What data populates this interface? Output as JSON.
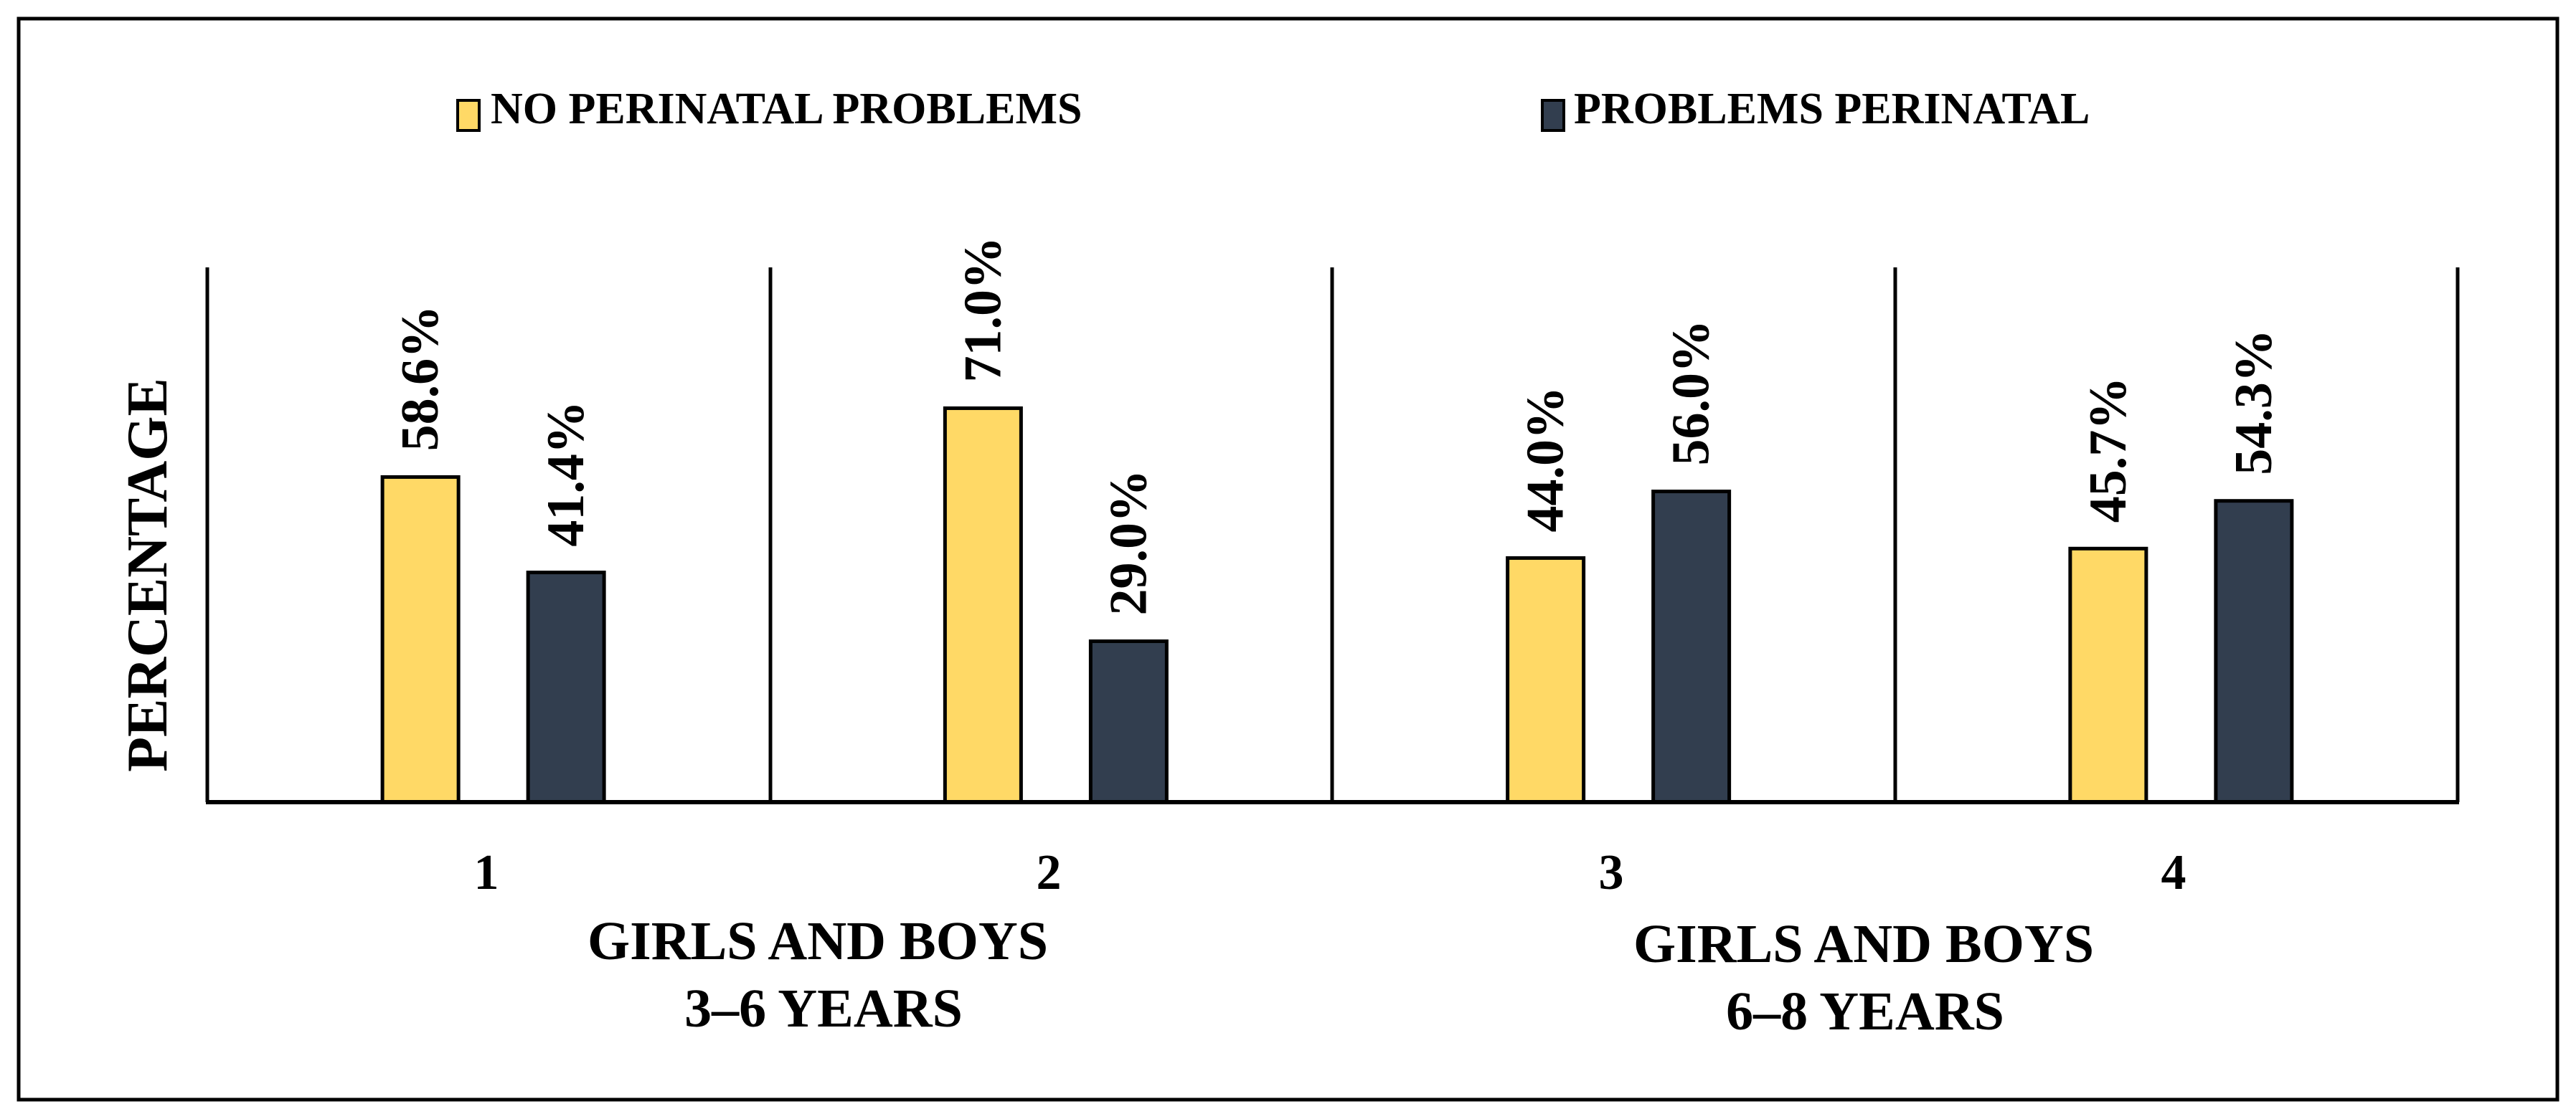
{
  "chart_data": {
    "type": "bar",
    "title": "",
    "ylabel": "PERCENTAGE",
    "xlabel": "",
    "ylim": [
      0,
      100
    ],
    "grid": false,
    "legend_position": "top",
    "categories": [
      "1",
      "2",
      "3",
      "4"
    ],
    "group_labels": [
      {
        "line1": "GIRLS AND BOYS",
        "line2": "3–6 YEARS"
      },
      {
        "line1": "GIRLS AND BOYS",
        "line2": "6–8 YEARS"
      }
    ],
    "series": [
      {
        "name": "NO PERINATAL PROBLEMS",
        "color": "#FFD966",
        "values": [
          58.6,
          71.0,
          44.0,
          45.7
        ],
        "labels": [
          "58.6%",
          "71.0%",
          "44.0%",
          "45.7%"
        ]
      },
      {
        "name": "PROBLEMS PERINATAL",
        "color": "#323E4F",
        "values": [
          41.4,
          29.0,
          56.0,
          54.3
        ],
        "labels": [
          "41.4%",
          "29.0%",
          "56.0%",
          "54.3%"
        ]
      }
    ]
  }
}
